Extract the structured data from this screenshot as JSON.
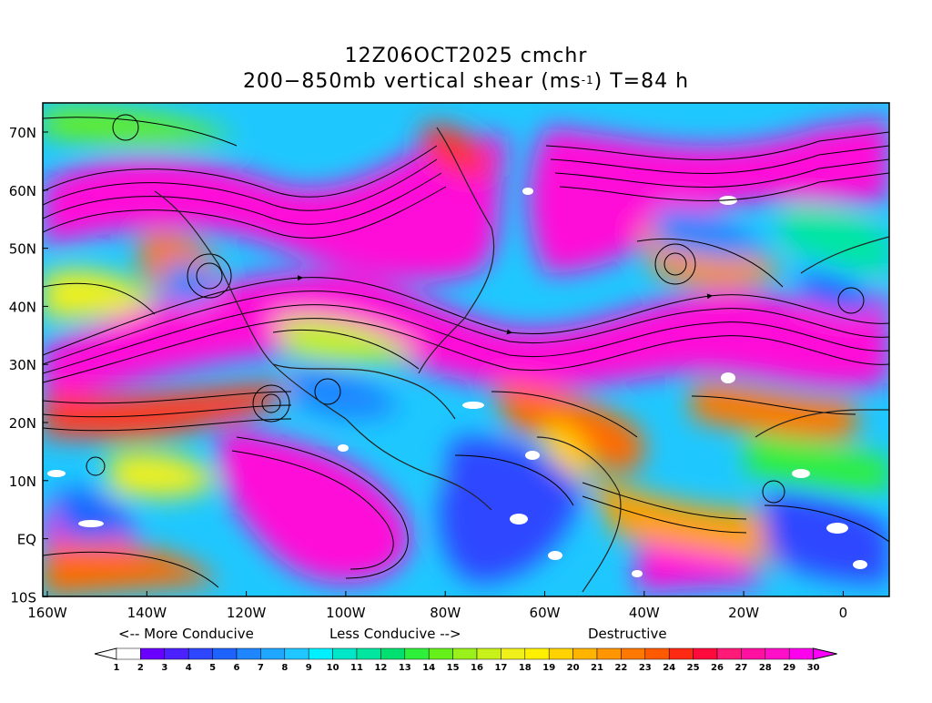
{
  "header": {
    "line1": "12Z06OCT2025 cmchr",
    "line2_prefix": "200−850mb vertical shear (ms",
    "line2_sup": "-1",
    "line2_suffix": ") T=84 h"
  },
  "map": {
    "lat_labels": [
      "70N",
      "60N",
      "50N",
      "40N",
      "30N",
      "20N",
      "10N",
      "EQ",
      "10S"
    ],
    "lon_labels": [
      "160W",
      "140W",
      "120W",
      "100W",
      "80W",
      "60W",
      "40W",
      "20W",
      "0"
    ],
    "field": "200-850mb vertical shear",
    "units": "ms-1"
  },
  "legend": {
    "more_conducive": "<-- More Conducive",
    "less_conducive": "Less Conducive -->",
    "destructive": "Destructive",
    "tick_labels": [
      "1",
      "2",
      "3",
      "4",
      "5",
      "6",
      "7",
      "8",
      "9",
      "10",
      "11",
      "12",
      "13",
      "14",
      "15",
      "16",
      "17",
      "18",
      "19",
      "20",
      "21",
      "22",
      "23",
      "24",
      "25",
      "26",
      "27",
      "28",
      "29",
      "30"
    ],
    "colors": [
      "#ffffff",
      "#6a00ff",
      "#4b22ff",
      "#2f46ff",
      "#1f63ff",
      "#1e86ff",
      "#1fa6ff",
      "#1fc6ff",
      "#00f0ff",
      "#00e6c8",
      "#00e6a0",
      "#00e070",
      "#2ef03a",
      "#66f01a",
      "#99f01a",
      "#c8f01a",
      "#f0f01a",
      "#fff000",
      "#ffd200",
      "#ffb400",
      "#ff9600",
      "#ff7800",
      "#ff5a00",
      "#ff2a14",
      "#ff0a3c",
      "#ff1a78",
      "#ff10a0",
      "#ff10c8",
      "#ff00ee"
    ],
    "under_color": "#ffffff",
    "over_color": "#ff00ff"
  }
}
